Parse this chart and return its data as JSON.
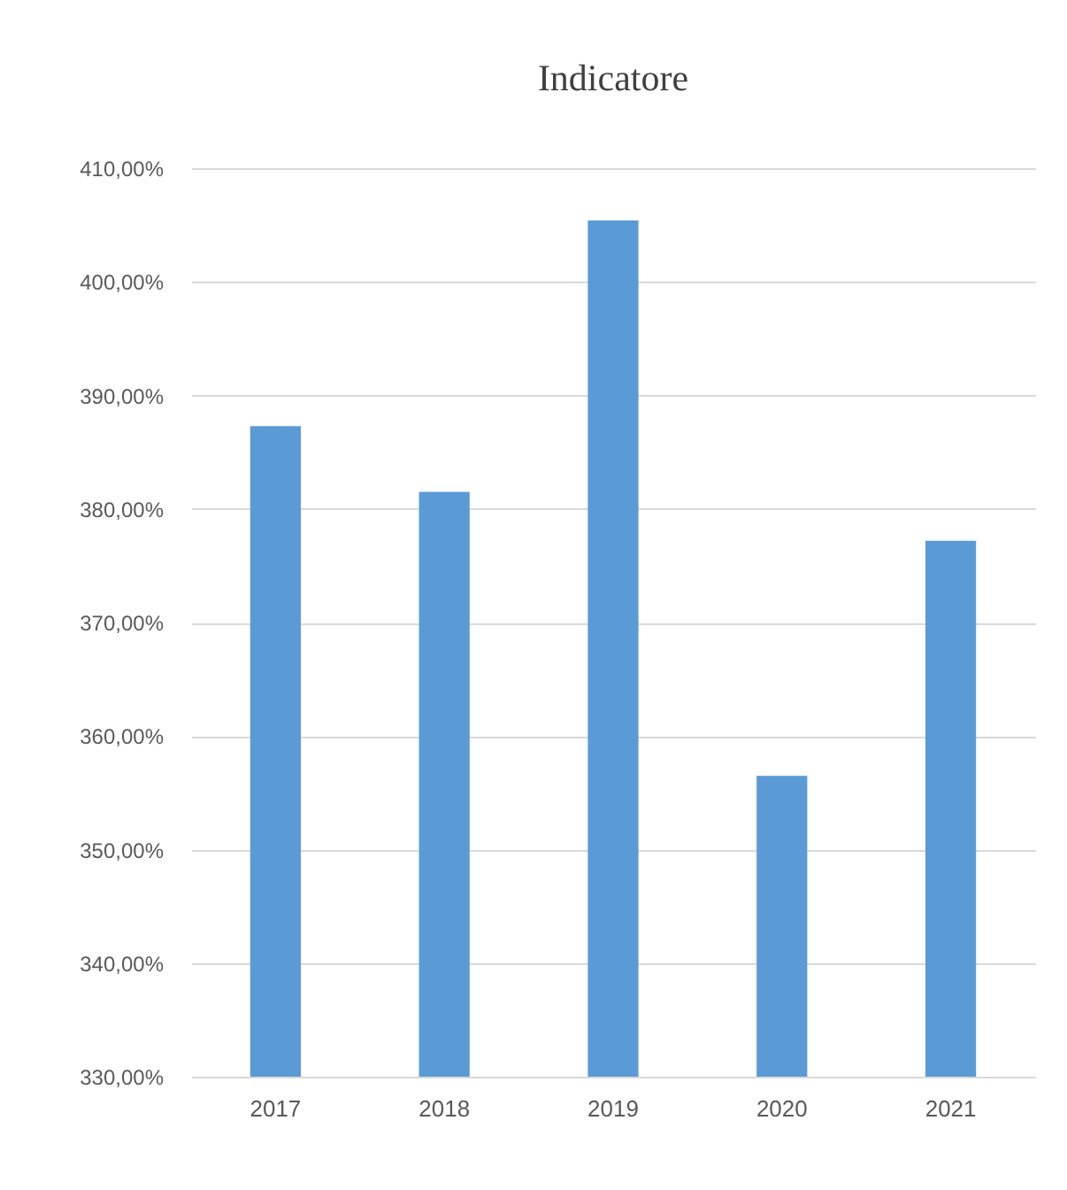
{
  "chart_data": {
    "type": "bar",
    "title": "Indicatore",
    "categories": [
      "2017",
      "2018",
      "2019",
      "2020",
      "2021"
    ],
    "values": [
      387.3,
      381.5,
      405.4,
      356.5,
      377.2
    ],
    "color": "#5b9bd5",
    "ylim": [
      330,
      410
    ],
    "yticks": [
      {
        "value": 330,
        "label": "330,00%"
      },
      {
        "value": 340,
        "label": "340,00%"
      },
      {
        "value": 350,
        "label": "350,00%"
      },
      {
        "value": 360,
        "label": "360,00%"
      },
      {
        "value": 370,
        "label": "370,00%"
      },
      {
        "value": 380,
        "label": "380,00%"
      },
      {
        "value": 390,
        "label": "390,00%"
      },
      {
        "value": 400,
        "label": "400,00%"
      },
      {
        "value": 410,
        "label": "410,00%"
      }
    ],
    "grid": "y"
  }
}
